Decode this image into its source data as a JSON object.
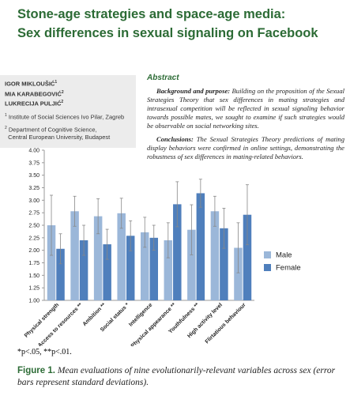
{
  "header": {
    "title_lines": [
      "Stone-age strategies and space-age media:",
      "Sex differences in sexual signaling on Facebook"
    ]
  },
  "authors": [
    {
      "name": "IGOR MIKLOUŠIĆ",
      "sup": "1"
    },
    {
      "name": "MIA KARABEGOVIĆ",
      "sup": "2"
    },
    {
      "name": "LUKRECIJA PULJIĆ",
      "sup": "2"
    }
  ],
  "affiliations": [
    {
      "sup": "1",
      "lines": [
        "Institute of Social Sciences Ivo Pilar, Zagreb"
      ]
    },
    {
      "sup": "2",
      "lines": [
        "Department of Cognitive Science,",
        "Central European University, Budapest"
      ]
    }
  ],
  "abstract": {
    "heading": "Abstract",
    "paragraphs": [
      {
        "label": "Background and purpose:",
        "text": "Building on the proposition of the Sexual Strategies Theory that sex differences in mating strategies and intrasexual competition will be reflected in sexual signaling behavior towards possible mates, we sought to examine if such strategies would be observable on social networking sites."
      },
      {
        "label": "Conclusions:",
        "text": "The Sexual Strategies Theory predictions of mating display behaviors were confirmed in online settings, demonstrating the robustness of sex differences in mating-related behaviors."
      }
    ]
  },
  "chart_data": {
    "type": "bar",
    "categories": [
      "Physical strength",
      "Access to resources **",
      "Ambition **",
      "Social status *",
      "Intelligence",
      "Physical appearance **",
      "Youthfulness **",
      "High activity level",
      "Flirtatious behaviour"
    ],
    "series": [
      {
        "name": "Male",
        "color": "#9bb7d9",
        "values": [
          2.5,
          2.78,
          2.68,
          2.74,
          2.36,
          2.2,
          2.41,
          2.78,
          2.05
        ],
        "errors": [
          0.6,
          0.3,
          0.35,
          0.3,
          0.3,
          0.35,
          0.5,
          0.3,
          0.5
        ]
      },
      {
        "name": "Female",
        "color": "#4f7fbc",
        "values": [
          2.03,
          2.2,
          2.12,
          2.29,
          2.25,
          2.92,
          3.14,
          2.44,
          2.71
        ],
        "errors": [
          0.3,
          0.3,
          0.3,
          0.3,
          0.25,
          0.45,
          0.28,
          0.4,
          0.6
        ]
      }
    ],
    "ylim": [
      1,
      4
    ],
    "yticks": [
      {
        "value": 1,
        "label": "1.00"
      },
      {
        "value": 1.25,
        "label": "1.25"
      },
      {
        "value": 1.5,
        "label": "1.50"
      },
      {
        "value": 1.75,
        "label": "1.75"
      },
      {
        "value": 2,
        "label": "2.00"
      },
      {
        "value": 2.25,
        "label": "2.25"
      },
      {
        "value": 2.5,
        "label": "2.50"
      },
      {
        "value": 2.75,
        "label": "2.75"
      },
      {
        "value": 3,
        "label": "3.00"
      },
      {
        "value": 3.25,
        "label": "3.25"
      },
      {
        "value": 3.5,
        "label": "3.50"
      },
      {
        "value": 3.75,
        "label": "3.75"
      },
      {
        "value": 4,
        "label": "4.00"
      }
    ],
    "grid": false,
    "legend": "right"
  },
  "footnote": "*p<.05, **p<.01.",
  "caption": {
    "label": "Figure 1.",
    "text": "Mean evaluations of nine evolutionarily-relevant variables across sex (error bars represent standard deviations)."
  }
}
